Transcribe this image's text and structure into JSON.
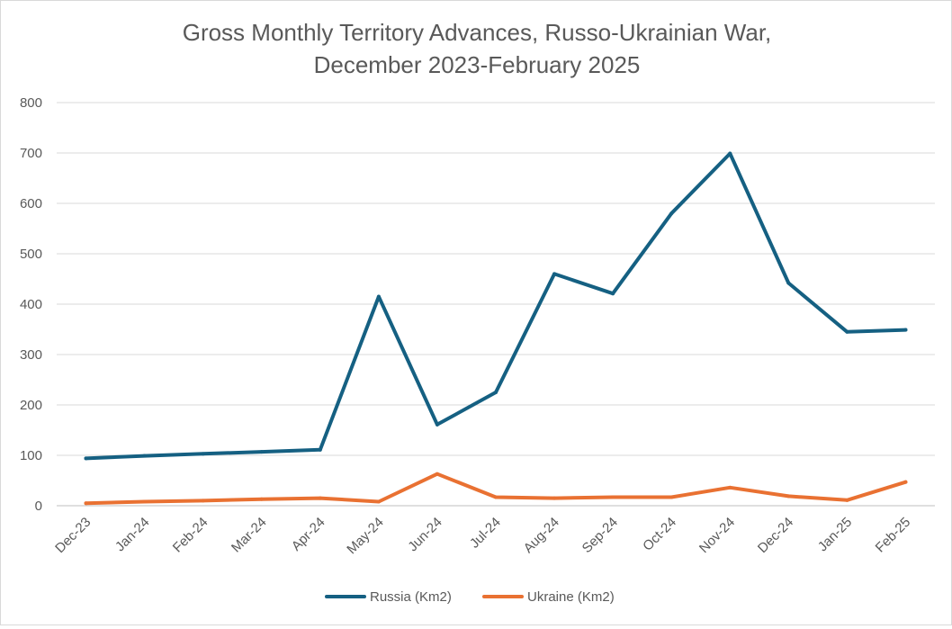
{
  "chart_data": {
    "type": "line",
    "title": "Gross Monthly Territory Advances, Russo-Ukrainian War,",
    "subtitle": "December 2023-February 2025",
    "xlabel": "",
    "ylabel": "",
    "categories": [
      "Dec-23",
      "Jan-24",
      "Feb-24",
      "Mar-24",
      "Apr-24",
      "May-24",
      "Jun-24",
      "Jul-24",
      "Aug-24",
      "Sep-24",
      "Oct-24",
      "Nov-24",
      "Dec-24",
      "Jan-25",
      "Feb-25"
    ],
    "ylim": [
      0,
      800
    ],
    "yticks": [
      0,
      100,
      200,
      300,
      400,
      500,
      600,
      700,
      800
    ],
    "grid": true,
    "legend_position": "bottom",
    "series": [
      {
        "name": "Russia (Km2)",
        "color": "#156082",
        "values": [
          94,
          99,
          103,
          107,
          111,
          415,
          161,
          225,
          460,
          421,
          580,
          699,
          442,
          345,
          349
        ]
      },
      {
        "name": "Ukraine (Km2)",
        "color": "#E97132",
        "values": [
          5,
          8,
          10,
          13,
          15,
          8,
          63,
          17,
          15,
          17,
          17,
          36,
          19,
          11,
          47
        ]
      }
    ]
  }
}
